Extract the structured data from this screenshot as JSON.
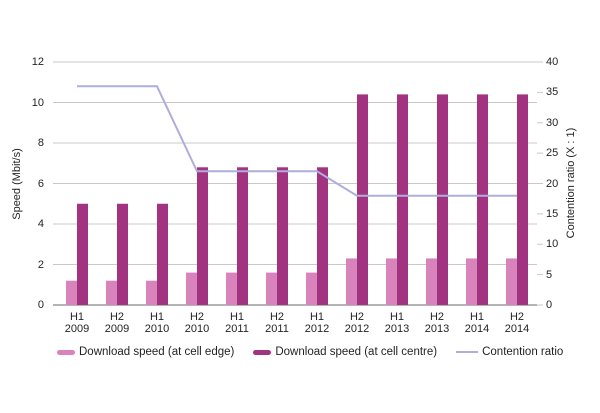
{
  "chart_data": {
    "type": "bar",
    "categories": [
      "H1 2009",
      "H2 2009",
      "H1 2010",
      "H2 2010",
      "H1 2011",
      "H2 2011",
      "H1 2012",
      "H2 2012",
      "H1 2013",
      "H2 2013",
      "H1 2014",
      "H2 2014"
    ],
    "series": [
      {
        "name": "Download speed (at cell edge)",
        "type": "bar",
        "axis": "left",
        "color": "#d983bc",
        "values": [
          1.2,
          1.2,
          1.2,
          1.6,
          1.6,
          1.6,
          1.6,
          2.3,
          2.3,
          2.3,
          2.3,
          2.3
        ]
      },
      {
        "name": "Download speed (at cell centre)",
        "type": "bar",
        "axis": "left",
        "color": "#a23380",
        "values": [
          5.0,
          5.0,
          5.0,
          6.8,
          6.8,
          6.8,
          6.8,
          10.4,
          10.4,
          10.4,
          10.4,
          10.4
        ]
      },
      {
        "name": "Contention ratio",
        "type": "line",
        "axis": "right",
        "color": "#aeaedc",
        "values": [
          36,
          36,
          36,
          22,
          22,
          22,
          22,
          18,
          18,
          18,
          18,
          18
        ]
      }
    ],
    "left_axis": {
      "label": "Speed (Mbit/s)",
      "min": 0,
      "max": 12,
      "ticks": [
        0,
        2,
        4,
        6,
        8,
        10,
        12
      ]
    },
    "right_axis": {
      "label": "Contention ratio (X : 1)",
      "min": 0,
      "max": 40,
      "ticks": [
        0,
        5,
        10,
        15,
        20,
        25,
        30,
        35,
        40
      ]
    },
    "grid": true,
    "legend_position": "bottom",
    "colors": {
      "gridline": "#c8c8c8",
      "baseline": "#b4b4b4",
      "text": "#262324"
    }
  }
}
